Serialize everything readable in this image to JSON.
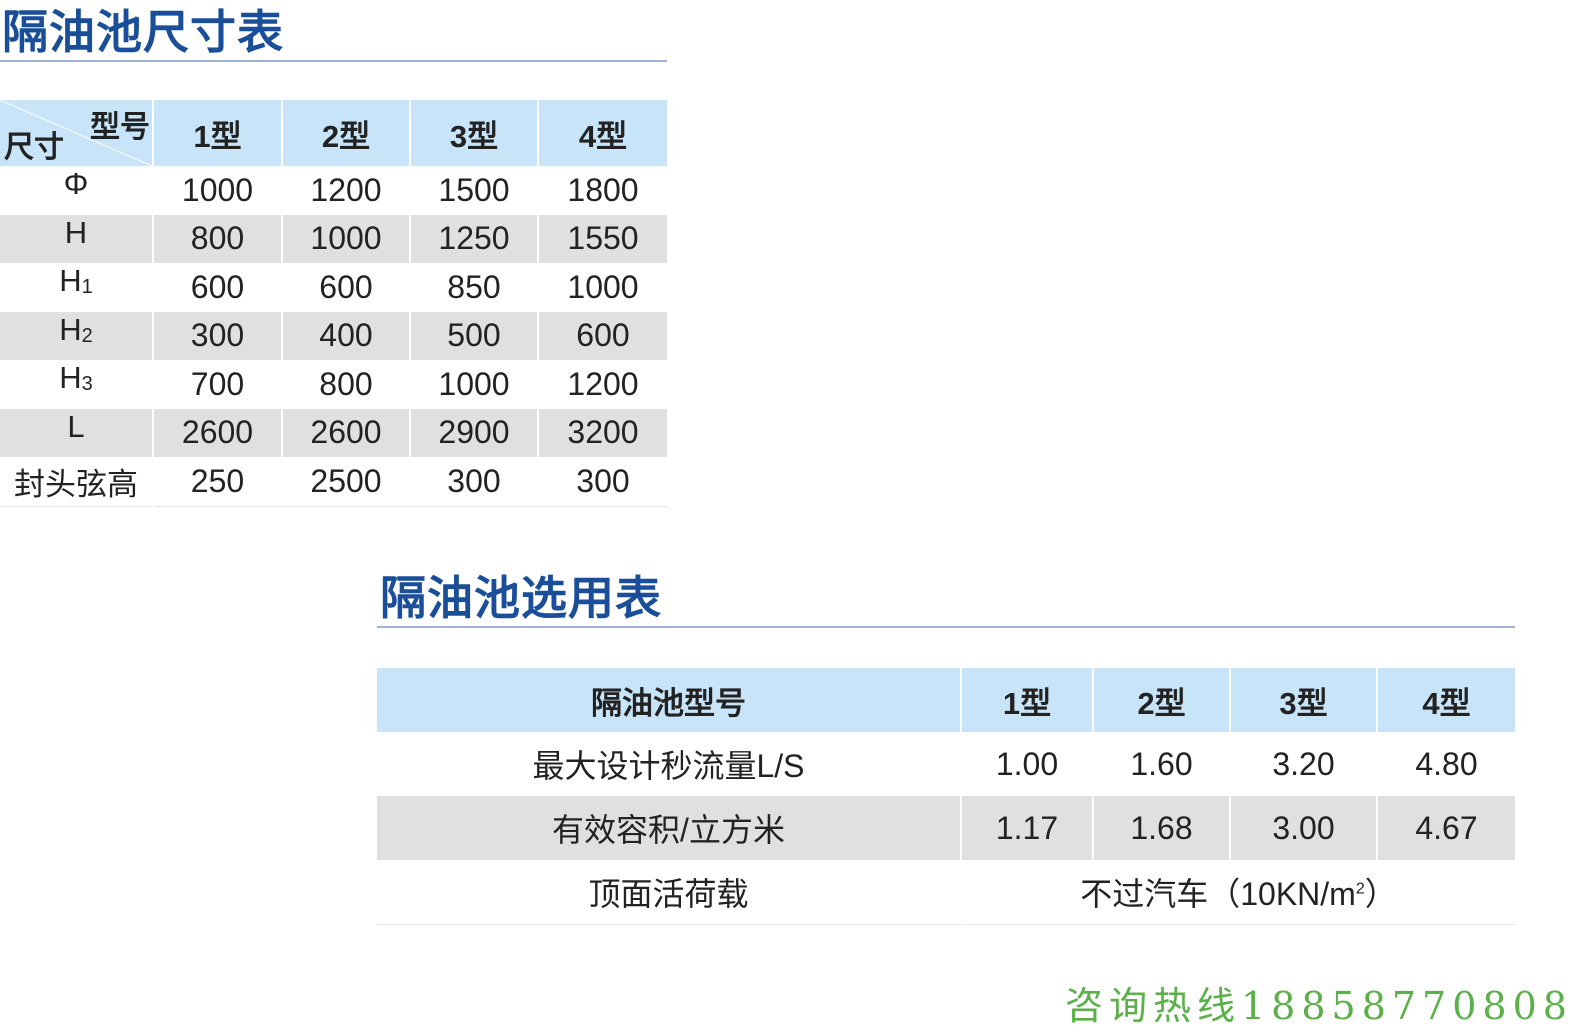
{
  "size_table": {
    "title": "隔油池尺寸表",
    "corner_top": "型号",
    "corner_bottom": "尺寸",
    "columns": [
      "1型",
      "2型",
      "3型",
      "4型"
    ],
    "rows": [
      {
        "label": "Φ",
        "sub": "",
        "values": [
          "1000",
          "1200",
          "1500",
          "1800"
        ]
      },
      {
        "label": "H",
        "sub": "",
        "values": [
          "800",
          "1000",
          "1250",
          "1550"
        ]
      },
      {
        "label": "H",
        "sub": "1",
        "values": [
          "600",
          "600",
          "850",
          "1000"
        ]
      },
      {
        "label": "H",
        "sub": "2",
        "values": [
          "300",
          "400",
          "500",
          "600"
        ]
      },
      {
        "label": "H",
        "sub": "3",
        "values": [
          "700",
          "800",
          "1000",
          "1200"
        ]
      },
      {
        "label": "L",
        "sub": "",
        "values": [
          "2600",
          "2600",
          "2900",
          "3200"
        ]
      },
      {
        "label": "封头弦高",
        "sub": "",
        "values": [
          "250",
          "2500",
          "300",
          "300"
        ]
      }
    ]
  },
  "selection_table": {
    "title": "隔油池选用表",
    "header": "隔油池型号",
    "columns": [
      "1型",
      "2型",
      "3型",
      "4型"
    ],
    "rows": [
      {
        "label": "最大设计秒流量L/S",
        "values": [
          "1.00",
          "1.60",
          "3.20",
          "4.80"
        ]
      },
      {
        "label": "有效容积/立方米",
        "values": [
          "1.17",
          "1.68",
          "3.00",
          "4.67"
        ]
      }
    ],
    "load_label": "顶面活荷载",
    "load_value": "不过汽车（10KN/m",
    "load_sup": "2",
    "load_close": "）"
  },
  "hotline": "咨询热线18858770808",
  "colors": {
    "title": "#1a4e98",
    "header_bg": "#c7e4f8",
    "stripe": "#e0e0e0",
    "hotline": "#5cb04a"
  }
}
